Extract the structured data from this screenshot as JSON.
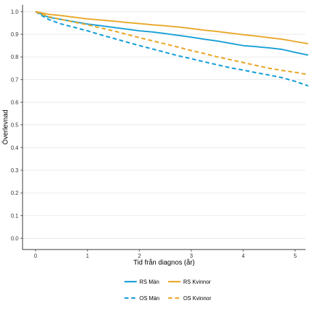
{
  "chart_data": {
    "type": "line",
    "title": "",
    "xlabel": "Tid från diagnos (år)",
    "ylabel": "Överlevnad",
    "xlim": [
      -0.25,
      5.2
    ],
    "ylim": [
      -0.05,
      1.03
    ],
    "x_ticks": [
      "0",
      "1",
      "2",
      "3",
      "4",
      "5"
    ],
    "y_ticks": [
      "0.0",
      "0.1",
      "0.2",
      "0.3",
      "0.4",
      "0.5",
      "0.6",
      "0.7",
      "0.8",
      "0.9",
      "1.0"
    ],
    "grid": "horizontal",
    "legend_position": "bottom",
    "series": [
      {
        "name": "RS Män",
        "color": "#1aa0d8",
        "dash": "solid",
        "x": [
          0,
          0.1,
          0.25,
          0.5,
          0.75,
          1.0,
          1.25,
          1.5,
          1.75,
          2.0,
          2.25,
          2.5,
          2.75,
          3.0,
          3.25,
          3.5,
          3.75,
          4.0,
          4.25,
          4.5,
          4.75,
          5.0,
          5.25
        ],
        "y": [
          1.0,
          0.99,
          0.975,
          0.965,
          0.955,
          0.945,
          0.938,
          0.93,
          0.923,
          0.915,
          0.91,
          0.903,
          0.895,
          0.887,
          0.878,
          0.87,
          0.86,
          0.85,
          0.845,
          0.84,
          0.833,
          0.82,
          0.808
        ]
      },
      {
        "name": "RS Kvinnor",
        "color": "#e8a82a",
        "dash": "solid",
        "x": [
          0,
          0.1,
          0.25,
          0.5,
          0.75,
          1.0,
          1.25,
          1.5,
          1.75,
          2.0,
          2.25,
          2.5,
          2.75,
          3.0,
          3.25,
          3.5,
          3.75,
          4.0,
          4.25,
          4.5,
          4.75,
          5.0,
          5.25
        ],
        "y": [
          1.0,
          0.995,
          0.988,
          0.982,
          0.975,
          0.968,
          0.963,
          0.958,
          0.952,
          0.947,
          0.942,
          0.937,
          0.932,
          0.925,
          0.918,
          0.912,
          0.905,
          0.898,
          0.892,
          0.885,
          0.878,
          0.868,
          0.858
        ]
      },
      {
        "name": "OS Män",
        "color": "#1aa0d8",
        "dash": "dashed",
        "x": [
          0,
          0.1,
          0.25,
          0.5,
          0.75,
          1.0,
          1.25,
          1.5,
          1.75,
          2.0,
          2.25,
          2.5,
          2.75,
          3.0,
          3.25,
          3.5,
          3.75,
          4.0,
          4.25,
          4.5,
          4.75,
          5.0,
          5.25
        ],
        "y": [
          1.0,
          0.985,
          0.965,
          0.945,
          0.93,
          0.915,
          0.898,
          0.882,
          0.866,
          0.85,
          0.835,
          0.82,
          0.805,
          0.792,
          0.778,
          0.765,
          0.752,
          0.742,
          0.73,
          0.72,
          0.708,
          0.692,
          0.672
        ]
      },
      {
        "name": "OS Kvinnor",
        "color": "#e8a82a",
        "dash": "dashed",
        "x": [
          0,
          0.1,
          0.25,
          0.5,
          0.75,
          1.0,
          1.25,
          1.5,
          1.75,
          2.0,
          2.25,
          2.5,
          2.75,
          3.0,
          3.25,
          3.5,
          3.75,
          4.0,
          4.25,
          4.5,
          4.75,
          5.0,
          5.25
        ],
        "y": [
          1.0,
          0.99,
          0.978,
          0.965,
          0.953,
          0.942,
          0.928,
          0.915,
          0.9,
          0.885,
          0.871,
          0.857,
          0.843,
          0.828,
          0.815,
          0.8,
          0.788,
          0.775,
          0.762,
          0.75,
          0.74,
          0.732,
          0.722
        ]
      }
    ]
  }
}
